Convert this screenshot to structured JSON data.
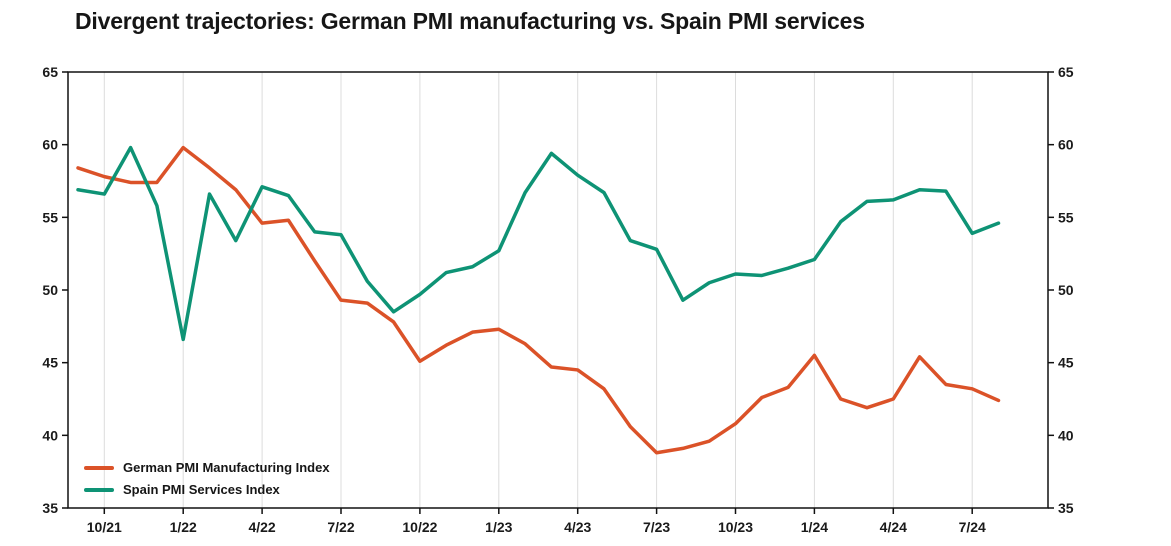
{
  "title": "Divergent trajectories: German PMI manufacturing vs. Spain PMI services",
  "chart_data": {
    "type": "line",
    "x": [
      "9/21",
      "10/21",
      "11/21",
      "12/21",
      "1/22",
      "2/22",
      "3/22",
      "4/22",
      "5/22",
      "6/22",
      "7/22",
      "8/22",
      "9/22",
      "10/22",
      "11/22",
      "12/22",
      "1/23",
      "2/23",
      "3/23",
      "4/23",
      "5/23",
      "6/23",
      "7/23",
      "8/23",
      "9/23",
      "10/23",
      "11/23",
      "12/23",
      "1/24",
      "2/24",
      "3/24",
      "4/24",
      "5/24",
      "6/24",
      "7/24",
      "8/24"
    ],
    "x_tick_labels": [
      "10/21",
      "1/22",
      "4/22",
      "7/22",
      "10/22",
      "1/23",
      "4/23",
      "7/23",
      "10/23",
      "1/24",
      "4/24",
      "7/24"
    ],
    "x_tick_indices": [
      1,
      4,
      7,
      10,
      13,
      16,
      19,
      22,
      25,
      28,
      31,
      34
    ],
    "ylim": [
      35,
      65
    ],
    "y_ticks": [
      35,
      40,
      45,
      50,
      55,
      60,
      65
    ],
    "grid": "vertical-only",
    "legend_position": "bottom-left-inside",
    "series": [
      {
        "name": "German PMI Manufacturing Index",
        "color": "#DB5228",
        "values": [
          58.4,
          57.8,
          57.4,
          57.4,
          59.8,
          58.4,
          56.9,
          54.6,
          54.8,
          52.0,
          49.3,
          49.1,
          47.8,
          45.1,
          46.2,
          47.1,
          47.3,
          46.3,
          44.7,
          44.5,
          43.2,
          40.6,
          38.8,
          39.1,
          39.6,
          40.8,
          42.6,
          43.3,
          45.5,
          42.5,
          41.9,
          42.5,
          45.4,
          43.5,
          43.2,
          42.4
        ]
      },
      {
        "name": "Spain PMI Services Index",
        "color": "#0E9375",
        "values": [
          56.9,
          56.6,
          59.8,
          55.8,
          46.6,
          56.6,
          53.4,
          57.1,
          56.5,
          54.0,
          53.8,
          50.6,
          48.5,
          49.7,
          51.2,
          51.6,
          52.7,
          56.7,
          59.4,
          57.9,
          56.7,
          53.4,
          52.8,
          49.3,
          50.5,
          51.1,
          51.0,
          51.5,
          52.1,
          54.7,
          56.1,
          56.2,
          56.9,
          56.8,
          53.9,
          54.6
        ]
      }
    ]
  }
}
